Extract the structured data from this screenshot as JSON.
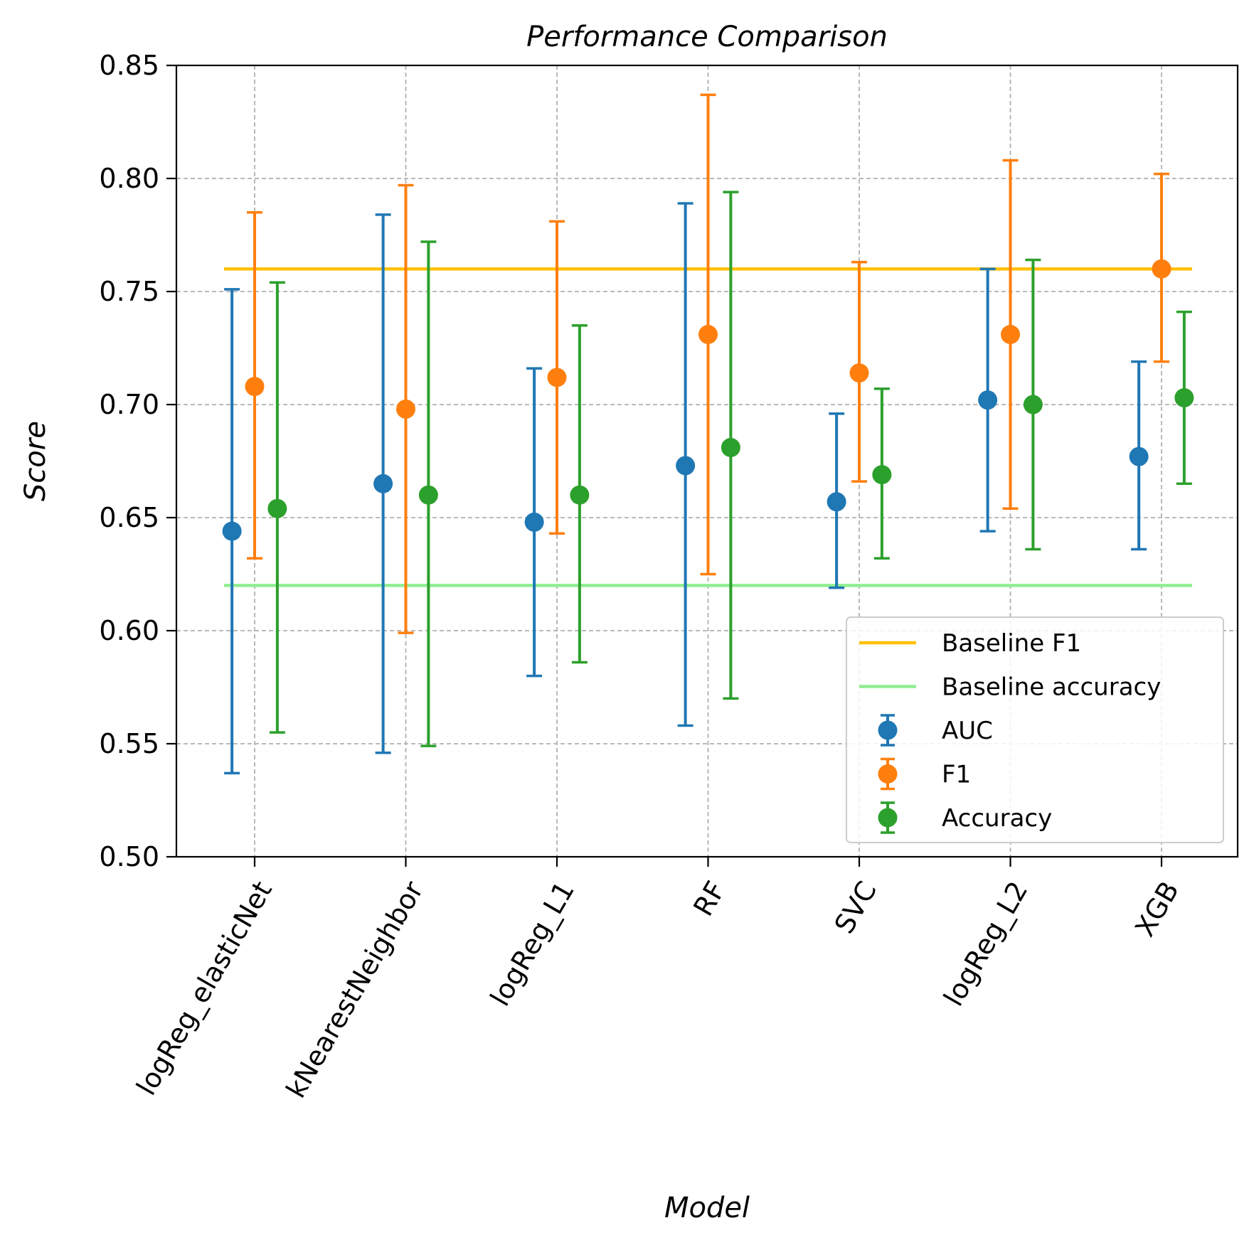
{
  "chart_data": {
    "type": "scatter",
    "title": "Performance Comparison",
    "xlabel": "Model",
    "ylabel": "Score",
    "ylim": [
      0.5,
      0.85
    ],
    "yticks": [
      "0.50",
      "0.55",
      "0.60",
      "0.65",
      "0.70",
      "0.75",
      "0.80",
      "0.85"
    ],
    "categories": [
      "logReg_elasticNet",
      "kNearestNeighbor",
      "logReg_L1",
      "RF",
      "SVC",
      "logReg_L2",
      "XGB"
    ],
    "grid": true,
    "legend_position": "lower-right",
    "series": [
      {
        "name": "AUC",
        "color": "#1f77b4",
        "offset": -0.15,
        "values": [
          0.644,
          0.665,
          0.648,
          0.673,
          0.657,
          0.702,
          0.677
        ],
        "lower": [
          0.537,
          0.546,
          0.58,
          0.558,
          0.619,
          0.644,
          0.636
        ],
        "upper": [
          0.751,
          0.784,
          0.716,
          0.789,
          0.696,
          0.76,
          0.719
        ]
      },
      {
        "name": "F1",
        "color": "#ff7f0e",
        "offset": 0.0,
        "values": [
          0.708,
          0.698,
          0.712,
          0.731,
          0.714,
          0.731,
          0.76
        ],
        "lower": [
          0.632,
          0.599,
          0.643,
          0.625,
          0.666,
          0.654,
          0.719
        ],
        "upper": [
          0.785,
          0.797,
          0.781,
          0.837,
          0.763,
          0.808,
          0.802
        ]
      },
      {
        "name": "Accuracy",
        "color": "#2ca02c",
        "offset": 0.15,
        "values": [
          0.654,
          0.66,
          0.66,
          0.681,
          0.669,
          0.7,
          0.703
        ],
        "lower": [
          0.555,
          0.549,
          0.586,
          0.57,
          0.632,
          0.636,
          0.665
        ],
        "upper": [
          0.754,
          0.772,
          0.735,
          0.794,
          0.707,
          0.764,
          0.741
        ]
      }
    ],
    "baselines": [
      {
        "name": "Baseline F1",
        "value": 0.76,
        "color": "#ffc107"
      },
      {
        "name": "Baseline accuracy",
        "value": 0.62,
        "color": "#90ee90"
      }
    ]
  }
}
